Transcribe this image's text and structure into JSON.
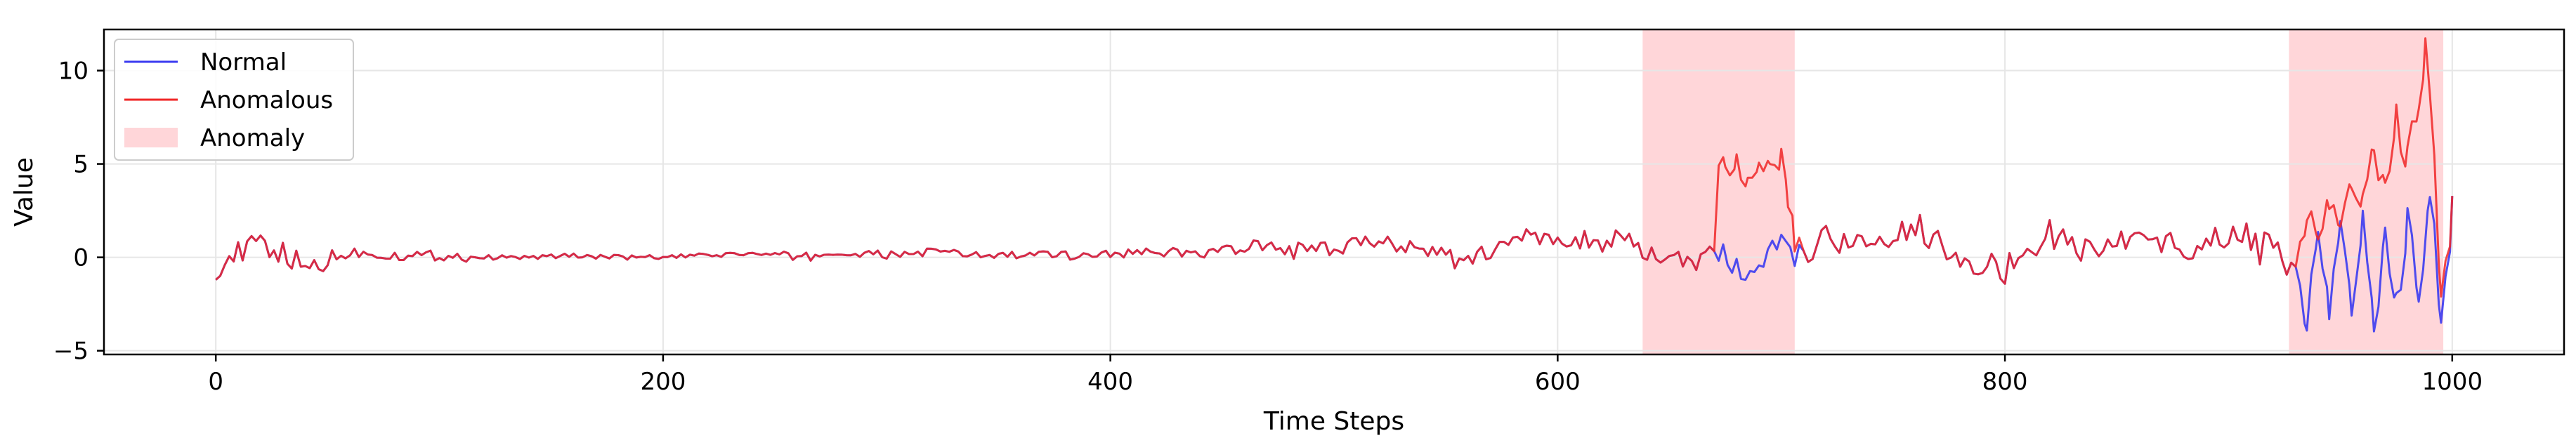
{
  "chart_data": {
    "type": "line",
    "title": "",
    "xlabel": "Time Steps",
    "ylabel": "Value",
    "xlim": [
      -50,
      1050
    ],
    "ylim": [
      -5.2,
      12.2
    ],
    "xticks": [
      0,
      200,
      400,
      600,
      800,
      1000
    ],
    "yticks": [
      -5,
      0,
      5,
      10
    ],
    "xtick_labels": [
      "0",
      "200",
      "400",
      "600",
      "800",
      "1000"
    ],
    "ytick_labels": [
      "−5",
      "0",
      "5",
      "10"
    ],
    "grid": true,
    "legend_position": "top-left",
    "anomaly_regions": [
      {
        "start": 638,
        "end": 706
      },
      {
        "start": 927,
        "end": 996
      }
    ],
    "series": [
      {
        "name": "Normal",
        "color": "#3b3bf0",
        "x": [
          0,
          20,
          40,
          60,
          80,
          100,
          120,
          140,
          160,
          180,
          200,
          220,
          240,
          260,
          280,
          300,
          320,
          340,
          360,
          380,
          400,
          420,
          440,
          460,
          480,
          500,
          520,
          540,
          560,
          580,
          600,
          620,
          640,
          660,
          670,
          680,
          690,
          700,
          710,
          720,
          740,
          760,
          780,
          800,
          820,
          840,
          860,
          880,
          900,
          920,
          930,
          935,
          940,
          945,
          950,
          955,
          960,
          965,
          970,
          975,
          980,
          985,
          990,
          995,
          1000
        ],
        "y": [
          -0.5,
          0.8,
          -0.6,
          0.3,
          0.1,
          0.1,
          0.0,
          0.0,
          0.1,
          0.0,
          0.0,
          0.1,
          0.2,
          0.0,
          0.2,
          0.1,
          0.3,
          0.1,
          0.1,
          0.1,
          0.2,
          0.3,
          0.2,
          0.5,
          0.4,
          0.3,
          0.9,
          0.6,
          -0.4,
          1.2,
          0.8,
          1.0,
          0.2,
          -0.6,
          0.7,
          -0.8,
          -0.5,
          0.6,
          -0.2,
          1.2,
          0.3,
          1.7,
          0.1,
          -0.7,
          1.3,
          0.2,
          1.4,
          0.4,
          1.2,
          0.3,
          -0.5,
          -3.5,
          1.2,
          -2.8,
          1.8,
          -2.6,
          2.1,
          -4.2,
          1.6,
          -2.9,
          2.2,
          -2.3,
          3.5,
          -3.2,
          2.4
        ]
      },
      {
        "name": "Anomalous",
        "color": "#f02626",
        "x": [
          0,
          20,
          40,
          60,
          80,
          100,
          120,
          140,
          160,
          180,
          200,
          220,
          240,
          260,
          280,
          300,
          320,
          340,
          360,
          380,
          400,
          420,
          440,
          460,
          480,
          500,
          520,
          540,
          560,
          580,
          600,
          620,
          640,
          660,
          670,
          672,
          675,
          680,
          685,
          690,
          695,
          700,
          703,
          706,
          710,
          720,
          740,
          760,
          780,
          800,
          820,
          840,
          860,
          880,
          900,
          920,
          930,
          935,
          940,
          945,
          950,
          955,
          960,
          965,
          970,
          975,
          980,
          985,
          988,
          990,
          992,
          995,
          1000
        ],
        "y": [
          -0.5,
          0.8,
          -0.6,
          0.3,
          0.1,
          0.1,
          0.0,
          0.0,
          0.1,
          0.0,
          0.0,
          0.1,
          0.2,
          0.0,
          0.2,
          0.1,
          0.3,
          0.1,
          0.1,
          0.1,
          0.2,
          0.3,
          0.2,
          0.5,
          0.4,
          0.3,
          0.9,
          0.6,
          -0.4,
          1.2,
          0.8,
          1.0,
          0.2,
          -0.6,
          0.7,
          5.5,
          4.4,
          4.8,
          4.2,
          5.0,
          4.6,
          5.2,
          3.0,
          0.9,
          -0.2,
          1.2,
          0.3,
          1.7,
          0.1,
          -0.7,
          1.3,
          0.2,
          1.4,
          0.4,
          1.2,
          0.3,
          -0.5,
          2.4,
          0.8,
          3.1,
          1.5,
          4.2,
          3.0,
          5.5,
          4.0,
          7.2,
          5.5,
          8.0,
          11.3,
          9.0,
          4.5,
          -1.8,
          2.4
        ]
      }
    ],
    "legend": {
      "normal_label": "Normal",
      "anomalous_label": "Anomalous",
      "anomaly_label": "Anomaly"
    },
    "colors": {
      "normal": "#3b3bf0",
      "anomalous": "#f02626",
      "overlap": "#dc143c",
      "anomaly_fill": "#ffd6d9",
      "grid": "#e6e6e6"
    }
  }
}
